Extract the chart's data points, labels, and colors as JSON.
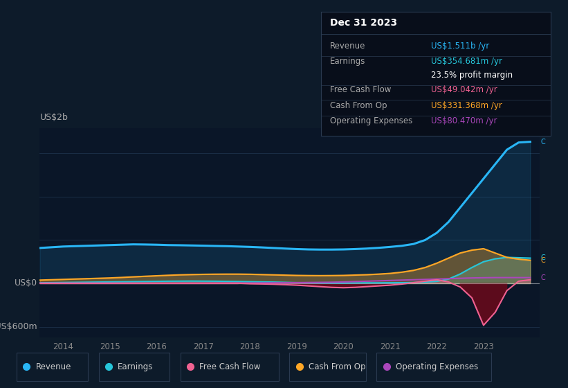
{
  "background_color": "#0d1b2a",
  "plot_bg_color": "#0a1628",
  "grid_color": "#1a2d45",
  "revenue_color": "#29b6f6",
  "earnings_color": "#26c6da",
  "free_cash_flow_color": "#f06292",
  "cash_from_op_color": "#ffa726",
  "operating_expenses_color": "#ab47bc",
  "zero_line_color": "#cccccc",
  "ylabel_top": "US$2b",
  "ylabel_bottom": "-US$600m",
  "ylabel_zero": "US$0",
  "x_ticks": [
    2014,
    2015,
    2016,
    2017,
    2018,
    2019,
    2020,
    2021,
    2022,
    2023
  ],
  "ylim_min": -750,
  "ylim_max": 2150,
  "xlim_min": 2013.5,
  "xlim_max": 2024.2,
  "tooltip_title": "Dec 31 2023",
  "tooltip_rows": [
    {
      "label": "Revenue",
      "value": "US$1.511b /yr",
      "label_color": "#aaaaaa",
      "value_color": "#29b6f6"
    },
    {
      "label": "Earnings",
      "value": "US$354.681m /yr",
      "label_color": "#aaaaaa",
      "value_color": "#26c6da"
    },
    {
      "label": "",
      "value": "23.5% profit margin",
      "label_color": "#aaaaaa",
      "value_color": "#ffffff"
    },
    {
      "label": "Free Cash Flow",
      "value": "US$49.042m /yr",
      "label_color": "#aaaaaa",
      "value_color": "#f06292"
    },
    {
      "label": "Cash From Op",
      "value": "US$331.368m /yr",
      "label_color": "#aaaaaa",
      "value_color": "#ffa726"
    },
    {
      "label": "Operating Expenses",
      "value": "US$80.470m /yr",
      "label_color": "#aaaaaa",
      "value_color": "#ab47bc"
    }
  ],
  "legend_items": [
    {
      "label": "Revenue",
      "color": "#29b6f6"
    },
    {
      "label": "Earnings",
      "color": "#26c6da"
    },
    {
      "label": "Free Cash Flow",
      "color": "#f06292"
    },
    {
      "label": "Cash From Op",
      "color": "#ffa726"
    },
    {
      "label": "Operating Expenses",
      "color": "#ab47bc"
    }
  ]
}
